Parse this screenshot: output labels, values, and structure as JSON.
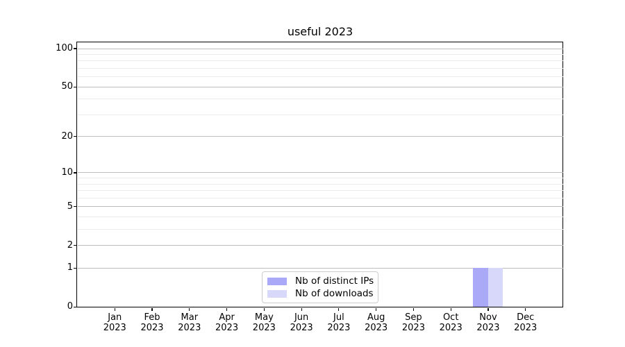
{
  "chart_data": {
    "type": "bar",
    "title": "useful 2023",
    "categories": [
      "Jan 2023",
      "Feb 2023",
      "Mar 2023",
      "Apr 2023",
      "May 2023",
      "Jun 2023",
      "Jul 2023",
      "Aug 2023",
      "Sep 2023",
      "Oct 2023",
      "Nov 2023",
      "Dec 2023"
    ],
    "series": [
      {
        "name": "Nb of distinct IPs",
        "color": "#a9a9f7",
        "values": [
          0,
          0,
          0,
          0,
          0,
          0,
          0,
          0,
          0,
          0,
          1,
          0
        ]
      },
      {
        "name": "Nb of downloads",
        "color": "#d8d8fa",
        "values": [
          0,
          0,
          0,
          0,
          0,
          0,
          0,
          0,
          0,
          0,
          1,
          0
        ]
      }
    ],
    "yscale": "log1p",
    "ylim": [
      0,
      112
    ],
    "y_major_ticks": [
      0,
      1,
      2,
      5,
      10,
      20,
      50,
      100
    ],
    "y_minor_ticks": [
      3,
      4,
      6,
      7,
      8,
      9,
      30,
      40,
      60,
      70,
      80,
      90
    ],
    "grid": true,
    "legend_position": "lower-center",
    "xlabel": "",
    "ylabel": ""
  },
  "colors": {
    "bar_distinct_ips": "#a9a9f7",
    "bar_downloads": "#d8d8fa",
    "grid_major": "#bdbdbd",
    "grid_minor": "#eaeaea",
    "axis": "#000000",
    "legend_border": "#cccccc",
    "background": "#ffffff"
  }
}
